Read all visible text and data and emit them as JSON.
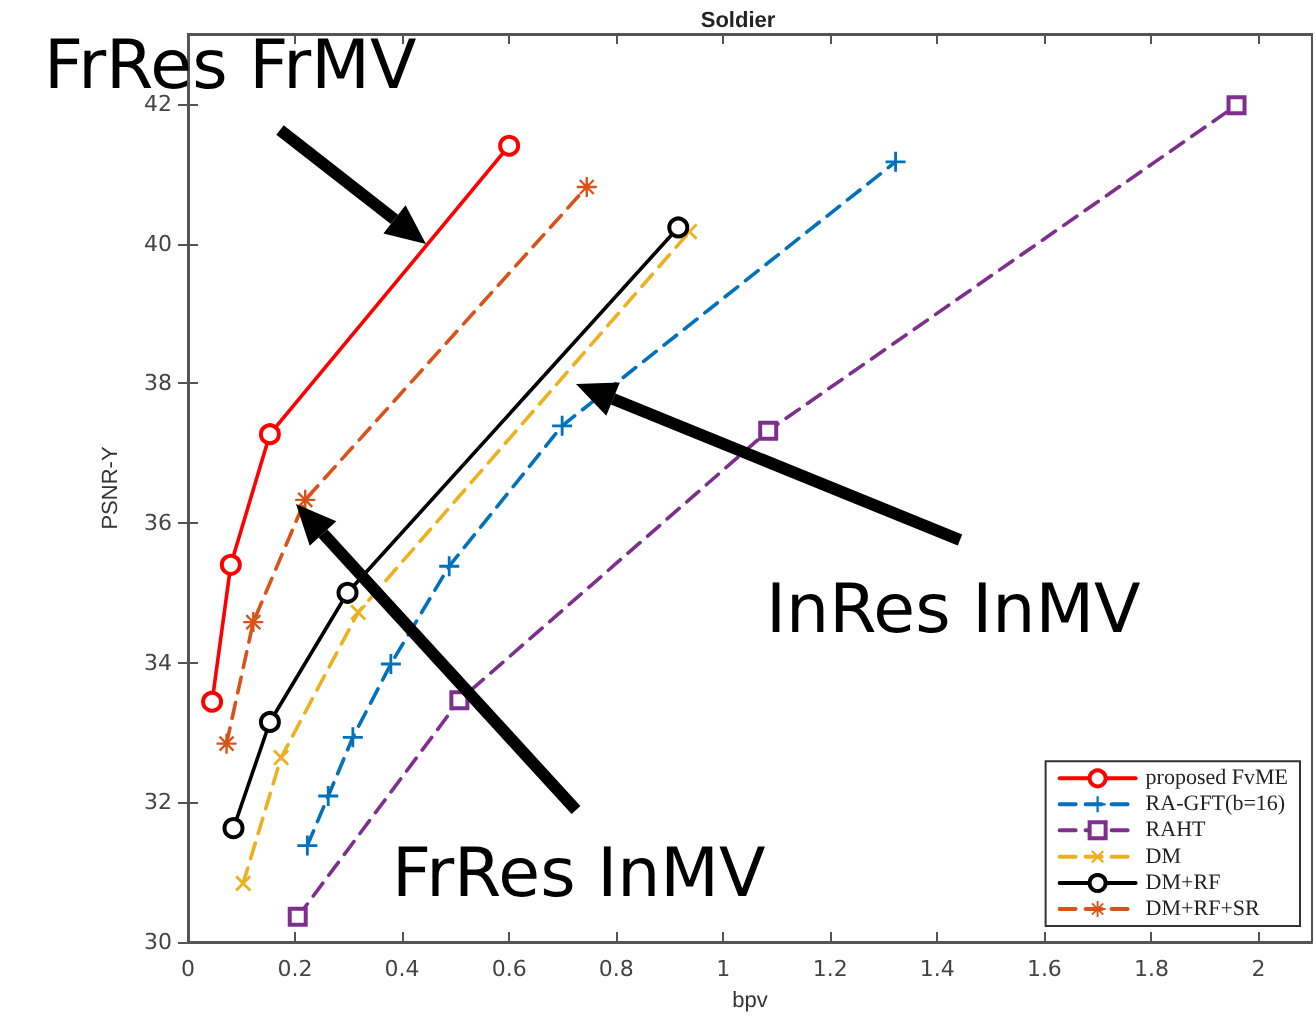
{
  "chart_data": {
    "type": "line",
    "title": "Soldier",
    "xlabel": "bpv",
    "ylabel": "PSNR-Y",
    "annotations": [
      "FrRes FrMV",
      "InRes InMV",
      "FrRes InMV"
    ],
    "xlim": [
      0,
      2.1
    ],
    "xticks": [
      0,
      0.2,
      0.4,
      0.6,
      0.8,
      1,
      1.2,
      1.4,
      1.6,
      1.8,
      2
    ],
    "ylim": [
      30,
      43
    ],
    "yticks": [
      30,
      32,
      34,
      36,
      38,
      40,
      42
    ],
    "grid": false,
    "legend": "bottom right",
    "series": [
      {
        "name": "proposed FvME",
        "color": "#ff0000",
        "marker": "circle",
        "line_style": "solid",
        "x": [
          0.045,
          0.08,
          0.153,
          0.6
        ],
        "values": [
          33.44,
          35.4,
          37.27,
          41.4
        ]
      },
      {
        "name": "RA-GFT(b=16)",
        "color": "#0072bd",
        "marker": "cross",
        "line_style": "dashed",
        "x": [
          0.223,
          0.262,
          0.308,
          0.379,
          0.488,
          0.699,
          1.322
        ],
        "values": [
          31.38,
          32.09,
          32.93,
          33.98,
          35.38,
          37.39,
          41.17
        ]
      },
      {
        "name": "RAHT",
        "color": "#7e2f8e",
        "marker": "square",
        "line_style": "dashed",
        "x": [
          0.205,
          0.507,
          1.084,
          1.959
        ],
        "values": [
          30.36,
          33.46,
          37.32,
          41.98
        ]
      },
      {
        "name": "DM",
        "color": "#edb120",
        "marker": "x",
        "line_style": "dashed",
        "x": [
          0.103,
          0.174,
          0.318,
          0.937
        ],
        "values": [
          30.84,
          32.64,
          34.72,
          40.17
        ]
      },
      {
        "name": "DM+RF",
        "color": "#000000",
        "marker": "circle",
        "line_style": "solid",
        "x": [
          0.085,
          0.153,
          0.298,
          0.916
        ],
        "values": [
          31.63,
          33.15,
          35.0,
          40.23
        ]
      },
      {
        "name": "DM+RF+SR",
        "color": "#d95319",
        "marker": "star",
        "line_style": "dashed",
        "x": [
          0.072,
          0.122,
          0.219,
          0.745
        ],
        "values": [
          32.84,
          34.58,
          36.33,
          40.81
        ]
      }
    ]
  }
}
